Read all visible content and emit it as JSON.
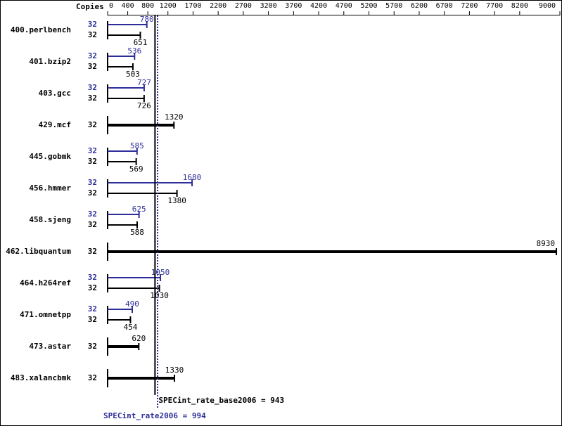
{
  "chart_data": {
    "type": "bar",
    "orientation": "horizontal",
    "copies_label": "Copies",
    "categories": [
      "400.perlbench",
      "401.bzip2",
      "403.gcc",
      "429.mcf",
      "445.gobmk",
      "456.hmmer",
      "458.sjeng",
      "462.libquantum",
      "464.h264ref",
      "471.omnetpp",
      "473.astar",
      "483.xalancbmk"
    ],
    "base_copies": [
      32,
      32,
      32,
      32,
      32,
      32,
      32,
      32,
      32,
      32,
      32,
      32
    ],
    "peak_copies": [
      32,
      32,
      32,
      null,
      32,
      32,
      32,
      null,
      32,
      32,
      null,
      null
    ],
    "base_values": [
      651,
      503,
      726,
      1320,
      569,
      1380,
      588,
      8930,
      1030,
      454,
      620,
      1330
    ],
    "peak_values": [
      780,
      536,
      727,
      null,
      585,
      1680,
      625,
      null,
      1050,
      490,
      null,
      null
    ],
    "base_color": "#000000",
    "peak_color": "#2e2e9a",
    "xlim": [
      0,
      9000
    ],
    "xticks": [
      0,
      400,
      800,
      1200,
      1700,
      2200,
      2700,
      3200,
      3700,
      4200,
      4700,
      5200,
      5700,
      6200,
      6700,
      7200,
      7700,
      8200,
      9000
    ],
    "reference_lines": [
      {
        "value": 943,
        "label": "SPECint_rate_base2006 = 943",
        "color": "#000000",
        "style": "solid"
      },
      {
        "value": 994,
        "label": "SPECint_rate2006 = 994",
        "color": "#2e2e9a",
        "style": "dotted"
      }
    ]
  }
}
